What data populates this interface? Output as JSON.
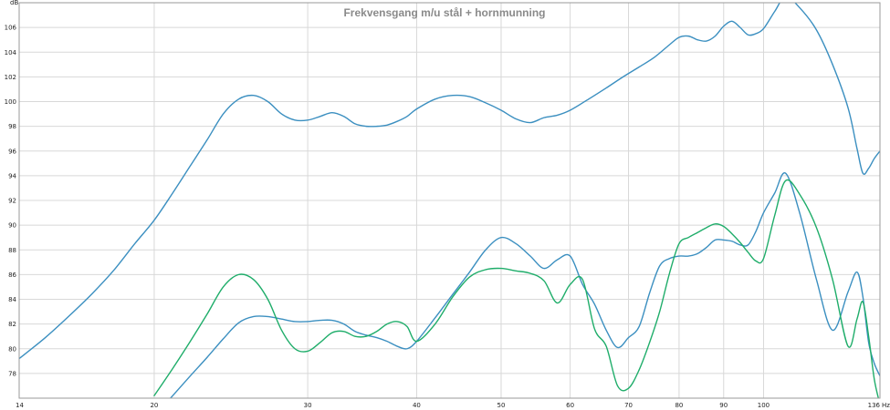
{
  "chart_data": {
    "type": "line",
    "title": "Frekvensgang m/u stål + hornmunning",
    "ylabel": "dB",
    "xunit": "Hz",
    "xscale": "log",
    "xlim": [
      14,
      136
    ],
    "ylim": [
      76,
      108
    ],
    "grid": true,
    "x_ticks": [
      14,
      20,
      30,
      40,
      50,
      60,
      70,
      80,
      90,
      100,
      136
    ],
    "x_tick_labels": [
      "14",
      "20",
      "30",
      "40",
      "50",
      "60",
      "70",
      "80",
      "90",
      "100",
      "136"
    ],
    "y_ticks": [
      78,
      80,
      82,
      84,
      86,
      88,
      90,
      92,
      94,
      96,
      98,
      100,
      102,
      104,
      106
    ],
    "series": [
      {
        "color": "#3b8fc0",
        "x": [
          14,
          15,
          16,
          17,
          18,
          19,
          20,
          21,
          22,
          23,
          24,
          25,
          26,
          27,
          28,
          29,
          30,
          31,
          32,
          33,
          34,
          35,
          36,
          37,
          38,
          39,
          40,
          42,
          44,
          46,
          48,
          50,
          52,
          54,
          56,
          58,
          60,
          63,
          66,
          69,
          72,
          75,
          78,
          80,
          82,
          84,
          86,
          88,
          90,
          92,
          94,
          96,
          98,
          100,
          103,
          106,
          110,
          115,
          120,
          125,
          128,
          130,
          132,
          134,
          136
        ],
        "y": [
          79.2,
          80.9,
          82.7,
          84.5,
          86.4,
          88.5,
          90.4,
          92.6,
          94.8,
          96.9,
          99.0,
          100.2,
          100.5,
          100.0,
          99.0,
          98.5,
          98.5,
          98.8,
          99.1,
          98.8,
          98.2,
          98.0,
          98.0,
          98.1,
          98.4,
          98.8,
          99.4,
          100.2,
          100.5,
          100.4,
          99.9,
          99.3,
          98.6,
          98.3,
          98.7,
          98.9,
          99.3,
          100.2,
          101.1,
          102.0,
          102.8,
          103.6,
          104.6,
          105.2,
          105.3,
          105.0,
          104.9,
          105.3,
          106.1,
          106.5,
          106.0,
          105.4,
          105.5,
          105.9,
          107.3,
          108.5,
          107.6,
          105.8,
          103.0,
          99.5,
          96.2,
          94.2,
          94.6,
          95.4,
          96.0
        ]
      },
      {
        "color": "#3b8fc0",
        "x": [
          20,
          21,
          22,
          23,
          24,
          25,
          26,
          27,
          28,
          29,
          30,
          31,
          32,
          33,
          34,
          35,
          36,
          37,
          38,
          39,
          40,
          42,
          44,
          46,
          48,
          50,
          52,
          54,
          56,
          58,
          60,
          62,
          64,
          66,
          68,
          70,
          72,
          74,
          76,
          78,
          80,
          82,
          84,
          86,
          88,
          90,
          92,
          94,
          96,
          98,
          100,
          103,
          106,
          110,
          115,
          120,
          125,
          128,
          130,
          132,
          134,
          136
        ],
        "y": [
          74.5,
          76.2,
          77.8,
          79.3,
          80.8,
          82.1,
          82.6,
          82.6,
          82.4,
          82.2,
          82.2,
          82.3,
          82.3,
          82.0,
          81.4,
          81.1,
          80.9,
          80.6,
          80.2,
          80.0,
          80.6,
          82.5,
          84.4,
          86.2,
          88.0,
          89.0,
          88.5,
          87.5,
          86.5,
          87.2,
          87.5,
          85.2,
          83.6,
          81.5,
          80.1,
          80.9,
          81.8,
          84.5,
          86.7,
          87.3,
          87.5,
          87.5,
          87.7,
          88.2,
          88.8,
          88.8,
          88.7,
          88.4,
          88.4,
          89.5,
          91.0,
          92.6,
          94.2,
          91.0,
          85.6,
          81.5,
          84.6,
          86.2,
          84.2,
          80.5,
          78.8,
          77.8
        ]
      },
      {
        "color": "#1fad6a",
        "x": [
          20,
          21,
          22,
          23,
          24,
          25,
          26,
          27,
          28,
          29,
          30,
          31,
          32,
          33,
          34,
          35,
          36,
          37,
          38,
          39,
          40,
          42,
          44,
          46,
          48,
          50,
          52,
          54,
          56,
          58,
          60,
          62,
          64,
          66,
          68,
          70,
          72,
          74,
          76,
          78,
          80,
          82,
          84,
          86,
          88,
          90,
          92,
          94,
          96,
          98,
          100,
          103,
          106,
          110,
          115,
          120,
          125,
          128,
          130,
          132,
          134,
          136
        ],
        "y": [
          76.2,
          78.4,
          80.6,
          82.8,
          85.0,
          86.0,
          85.6,
          84.0,
          81.5,
          80.0,
          79.8,
          80.5,
          81.3,
          81.4,
          81.0,
          81.0,
          81.4,
          82.0,
          82.2,
          81.8,
          80.6,
          82.0,
          84.2,
          85.8,
          86.4,
          86.5,
          86.3,
          86.1,
          85.5,
          83.7,
          85.2,
          85.6,
          81.6,
          80.2,
          77.0,
          76.8,
          78.3,
          80.5,
          83.0,
          86.1,
          88.5,
          89.0,
          89.4,
          89.8,
          90.1,
          89.9,
          89.3,
          88.6,
          87.8,
          87.1,
          87.3,
          90.8,
          93.6,
          92.5,
          89.8,
          85.6,
          80.2,
          82.4,
          83.8,
          81.0,
          77.5,
          75.5
        ]
      }
    ]
  }
}
